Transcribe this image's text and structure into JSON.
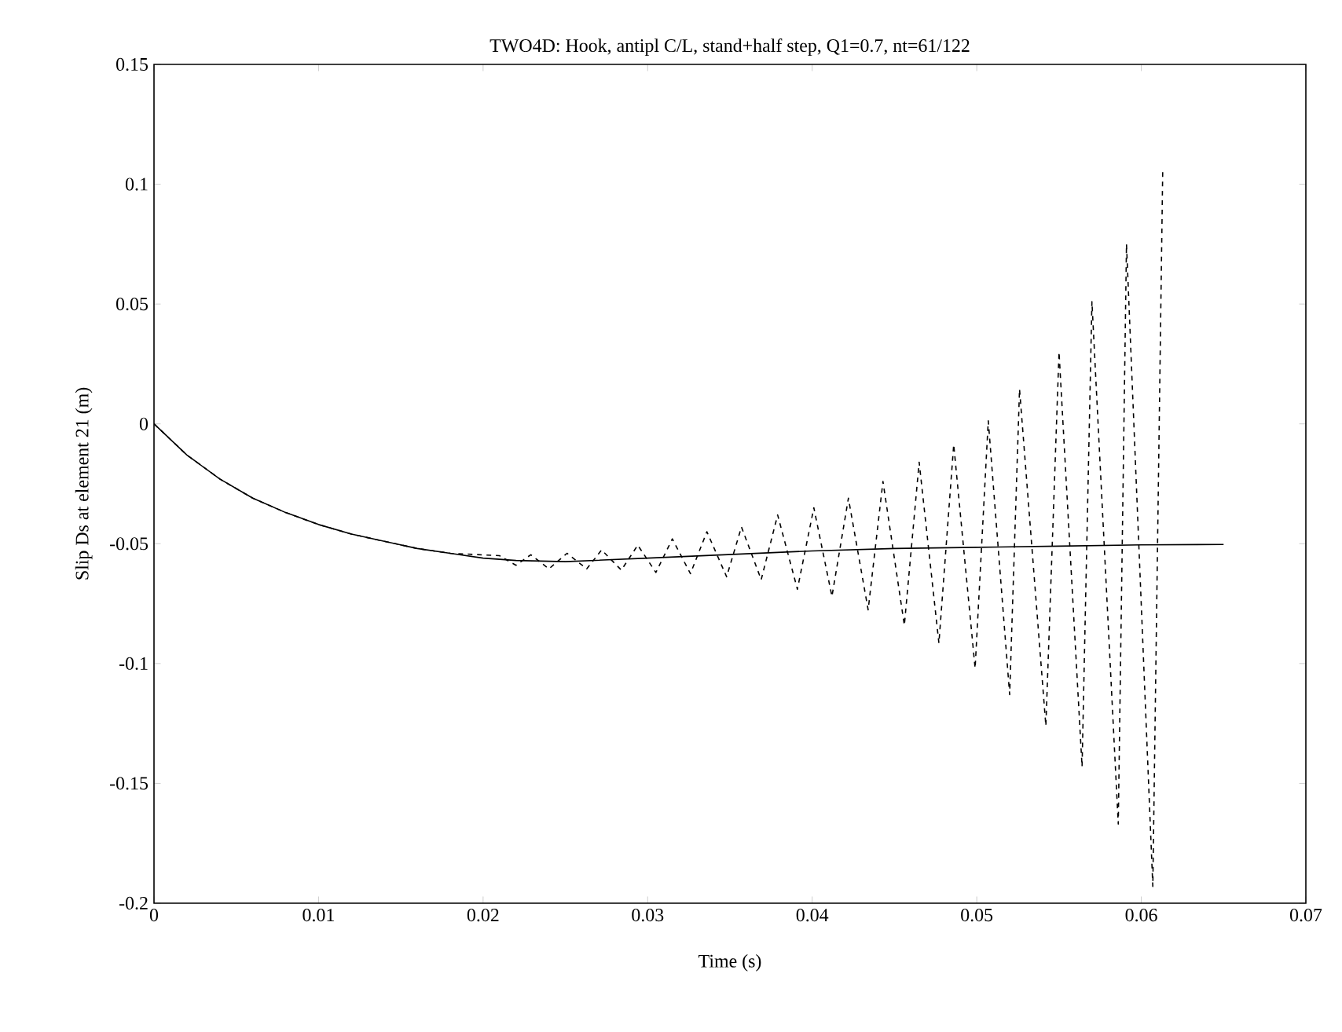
{
  "chart_data": {
    "type": "line",
    "title": "TWO4D: Hook, antipl C/L, stand+half step, Q1=0.7, nt=61/122",
    "xlabel": "Time (s)",
    "ylabel": "Slip Ds at element 21 (m)",
    "xlim": [
      0,
      0.07
    ],
    "ylim": [
      -0.2,
      0.15
    ],
    "xticks": [
      0,
      0.01,
      0.02,
      0.03,
      0.04,
      0.05,
      0.06,
      0.07
    ],
    "yticks": [
      -0.2,
      -0.15,
      -0.1,
      -0.05,
      0,
      0.05,
      0.1,
      0.15
    ],
    "series": [
      {
        "color": "#000000",
        "line_style": "solid",
        "x": [
          0,
          0.002,
          0.004,
          0.006,
          0.008,
          0.01,
          0.012,
          0.014,
          0.016,
          0.018,
          0.02,
          0.022,
          0.025,
          0.03,
          0.035,
          0.04,
          0.045,
          0.05,
          0.055,
          0.06,
          0.065
        ],
        "values": [
          0,
          -0.013,
          -0.023,
          -0.031,
          -0.037,
          -0.042,
          -0.046,
          -0.049,
          -0.052,
          -0.054,
          -0.056,
          -0.057,
          -0.0575,
          -0.056,
          -0.0545,
          -0.053,
          -0.052,
          -0.0515,
          -0.051,
          -0.0505,
          -0.0503
        ]
      },
      {
        "color": "#000000",
        "line_style": "dashed",
        "x": [
          0,
          0.002,
          0.004,
          0.006,
          0.008,
          0.01,
          0.012,
          0.014,
          0.016,
          0.018,
          0.021,
          0.022,
          0.0229,
          0.024,
          0.0251,
          0.0263,
          0.0272,
          0.0284,
          0.0294,
          0.0305,
          0.0315,
          0.0326,
          0.0336,
          0.0348,
          0.0357,
          0.0369,
          0.0379,
          0.0391,
          0.0401,
          0.0412,
          0.0422,
          0.0434,
          0.0443,
          0.0456,
          0.0465,
          0.0477,
          0.0486,
          0.0499,
          0.0507,
          0.052,
          0.0526,
          0.0542,
          0.055,
          0.0564,
          0.057,
          0.0586,
          0.0591,
          0.0607,
          0.0613
        ],
        "values": [
          0,
          -0.013,
          -0.023,
          -0.031,
          -0.037,
          -0.042,
          -0.046,
          -0.049,
          -0.052,
          -0.054,
          -0.055,
          -0.059,
          -0.0546,
          -0.0605,
          -0.054,
          -0.0605,
          -0.0526,
          -0.061,
          -0.0506,
          -0.062,
          -0.048,
          -0.0625,
          -0.045,
          -0.0638,
          -0.043,
          -0.065,
          -0.038,
          -0.069,
          -0.035,
          -0.072,
          -0.031,
          -0.0776,
          -0.024,
          -0.084,
          -0.016,
          -0.0915,
          -0.0086,
          -0.102,
          0.0013,
          -0.113,
          0.0145,
          -0.126,
          0.03,
          -0.143,
          0.051,
          -0.167,
          0.075,
          -0.193,
          0.105
        ]
      }
    ]
  }
}
